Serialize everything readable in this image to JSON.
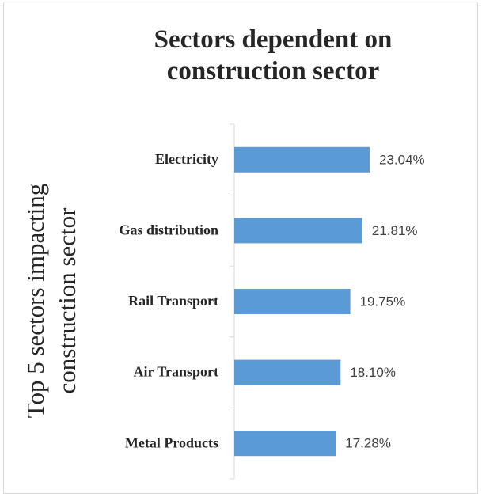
{
  "chart_data": {
    "type": "bar",
    "orientation": "horizontal",
    "title": "Sectors dependent on construction sector",
    "y_label": "Top 5 sectors impacting construction sector",
    "categories": [
      "Electricity",
      "Gas distribution",
      "Rail Transport",
      "Air Transport",
      "Metal Products"
    ],
    "values": [
      23.04,
      21.81,
      19.75,
      18.1,
      17.28
    ],
    "value_labels": [
      "23.04%",
      "21.81%",
      "19.75%",
      "18.10%",
      "17.28%"
    ],
    "color": "#5b9bd5"
  }
}
